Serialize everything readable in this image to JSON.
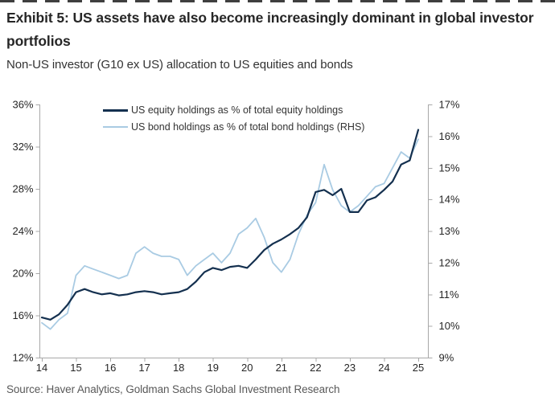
{
  "page": {
    "title": "Exhibit 5: US assets have also become increasingly dominant in global investor portfolios",
    "subtitle": "Non-US investor (G10 ex US) allocation to US equities and bonds",
    "source": "Source: Haver Analytics, Goldman Sachs Global Investment Research"
  },
  "legend": {
    "equity_label": "US equity holdings as % of total equity holdings",
    "bond_label": "US bond holdings as % of total bond holdings (RHS)"
  },
  "colors": {
    "equity_line": "#14304f",
    "bond_line": "#a9cbe3",
    "axis": "#a8a8a8",
    "tick_text": "#262626",
    "legend_text": "#333333",
    "source_text": "#595959"
  },
  "chart_data": {
    "type": "line",
    "title": "Non-US investor (G10 ex US) allocation to US equities and bonds",
    "grid": false,
    "legend_position": "top-left-inside",
    "left_axis": {
      "ticks": [
        12,
        16,
        20,
        24,
        28,
        32,
        36
      ],
      "range": [
        12,
        36
      ],
      "suffix": "%"
    },
    "right_axis": {
      "ticks": [
        9,
        10,
        11,
        12,
        13,
        14,
        15,
        16,
        17
      ],
      "range": [
        9,
        17
      ],
      "suffix": "%"
    },
    "x_axis": {
      "tick_labels": [
        "14",
        "15",
        "16",
        "17",
        "18",
        "19",
        "20",
        "21",
        "22",
        "23",
        "24",
        "25"
      ],
      "tick_values": [
        14,
        15,
        16,
        17,
        18,
        19,
        20,
        21,
        22,
        23,
        24,
        25
      ],
      "range": [
        14,
        25
      ]
    },
    "x": [
      14,
      14.25,
      14.5,
      14.75,
      15,
      15.25,
      15.5,
      15.75,
      16,
      16.25,
      16.5,
      16.75,
      17,
      17.25,
      17.5,
      17.75,
      18,
      18.25,
      18.5,
      18.75,
      19,
      19.25,
      19.5,
      19.75,
      20,
      20.25,
      20.5,
      20.75,
      21,
      21.25,
      21.5,
      21.75,
      22,
      22.25,
      22.5,
      22.75,
      23,
      23.25,
      23.5,
      23.75,
      24,
      24.25,
      24.5,
      24.75,
      25
    ],
    "series": [
      {
        "name": "US bond holdings as % of total bond holdings (RHS)",
        "axis": "right",
        "color": "#a9cbe3",
        "stroke_width": 1.8,
        "values": [
          10.1,
          9.9,
          10.2,
          10.4,
          11.6,
          11.9,
          11.8,
          11.7,
          11.6,
          11.5,
          11.6,
          12.3,
          12.5,
          12.3,
          12.2,
          12.2,
          12.1,
          11.6,
          11.9,
          12.1,
          12.3,
          12.0,
          12.3,
          12.9,
          13.1,
          13.4,
          12.8,
          12.0,
          11.7,
          12.1,
          12.9,
          13.5,
          13.9,
          15.1,
          14.3,
          13.8,
          13.6,
          13.8,
          14.1,
          14.4,
          14.5,
          15.0,
          15.5,
          15.3,
          15.9
        ]
      },
      {
        "name": "US equity holdings as % of total equity holdings",
        "axis": "left",
        "color": "#14304f",
        "stroke_width": 2.2,
        "values": [
          15.8,
          15.6,
          16.1,
          17.0,
          18.2,
          18.5,
          18.2,
          18.0,
          18.1,
          17.9,
          18.0,
          18.2,
          18.3,
          18.2,
          18.0,
          18.1,
          18.2,
          18.5,
          19.2,
          20.1,
          20.5,
          20.3,
          20.6,
          20.7,
          20.5,
          21.3,
          22.2,
          22.8,
          23.2,
          23.7,
          24.3,
          25.3,
          27.7,
          27.9,
          27.4,
          28.0,
          25.8,
          25.8,
          26.9,
          27.2,
          27.9,
          28.7,
          30.3,
          30.7,
          33.6
        ]
      }
    ]
  }
}
